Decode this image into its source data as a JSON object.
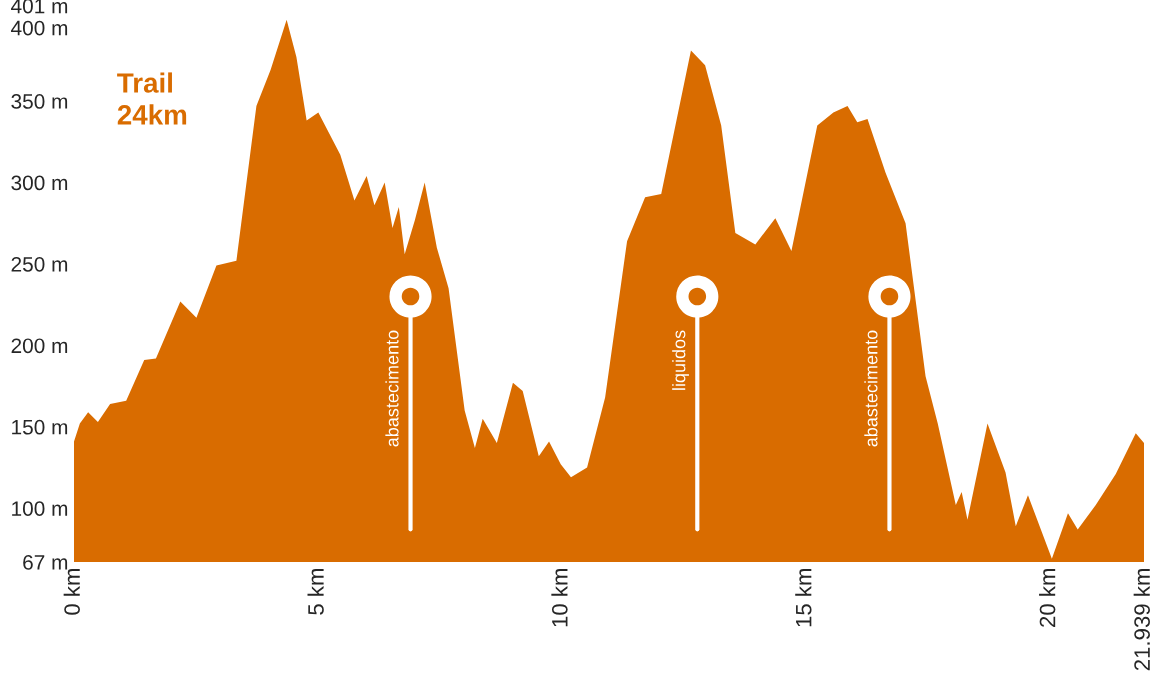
{
  "chart_data": {
    "type": "area",
    "title": "Trail\n24km",
    "x": [
      0,
      0.12,
      0.29,
      0.49,
      0.74,
      1.07,
      1.44,
      1.68,
      2.18,
      2.51,
      2.92,
      3.33,
      3.74,
      4.03,
      4.36,
      4.56,
      4.77,
      5.01,
      5.46,
      5.75,
      6.0,
      6.16,
      6.37,
      6.53,
      6.66,
      6.78,
      6.99,
      7.19,
      7.44,
      7.68,
      8.01,
      8.22,
      8.38,
      8.67,
      9.0,
      9.2,
      9.53,
      9.74,
      9.98,
      10.19,
      10.52,
      10.89,
      11.34,
      11.71,
      12.04,
      12.65,
      12.94,
      13.27,
      13.56,
      13.97,
      14.38,
      14.71,
      15.24,
      15.57,
      15.86,
      16.06,
      16.27,
      16.64,
      17.05,
      17.46,
      17.71,
      18.08,
      18.2,
      18.32,
      18.73,
      19.1,
      19.31,
      19.56,
      20.05,
      20.38,
      20.58,
      20.95,
      21.36,
      21.77,
      21.939
    ],
    "series": [
      {
        "color": "#d96c00",
        "values": [
          141,
          152,
          159,
          153,
          164,
          166,
          191,
          192,
          227,
          217,
          249,
          252,
          347,
          369,
          400,
          377,
          338,
          343,
          317,
          289,
          304,
          286,
          300,
          272,
          285,
          256,
          277,
          300,
          260,
          235,
          160,
          137,
          155,
          140,
          177,
          172,
          132,
          141,
          127,
          119,
          125,
          168,
          264,
          291,
          293,
          381,
          372,
          335,
          269,
          262,
          278,
          258,
          335,
          343,
          347,
          337,
          339,
          306,
          275,
          181,
          152,
          102,
          110,
          93,
          152,
          122,
          89,
          108,
          69,
          97,
          87,
          102,
          121,
          146,
          140
        ]
      }
    ],
    "xlim": [
      0,
      21.939
    ],
    "ylim": [
      67,
      401
    ],
    "xticks": [
      {
        "value": 0,
        "label": "0 km"
      },
      {
        "value": 5,
        "label": "5 km"
      },
      {
        "value": 10,
        "label": "10 km"
      },
      {
        "value": 15,
        "label": "15 km"
      },
      {
        "value": 20,
        "label": "20 km"
      },
      {
        "value": 21.939,
        "label": "21.939 km"
      }
    ],
    "yticks": [
      {
        "value": 67,
        "label": "67 m"
      },
      {
        "value": 100,
        "label": "100 m"
      },
      {
        "value": 150,
        "label": "150 m"
      },
      {
        "value": 200,
        "label": "200 m"
      },
      {
        "value": 250,
        "label": "250 m"
      },
      {
        "value": 300,
        "label": "300 m"
      },
      {
        "value": 350,
        "label": "350 m"
      },
      {
        "value": 400,
        "label": "400 m"
      },
      {
        "value": 401,
        "label": "401 m"
      }
    ],
    "annotations": [
      {
        "text": "abastecimento",
        "x": 6.9,
        "y": 230
      },
      {
        "text": "liquidos",
        "x": 12.78,
        "y": 230
      },
      {
        "text": "abastecimento",
        "x": 16.72,
        "y": 230
      }
    ],
    "grid": false,
    "legend": false
  }
}
